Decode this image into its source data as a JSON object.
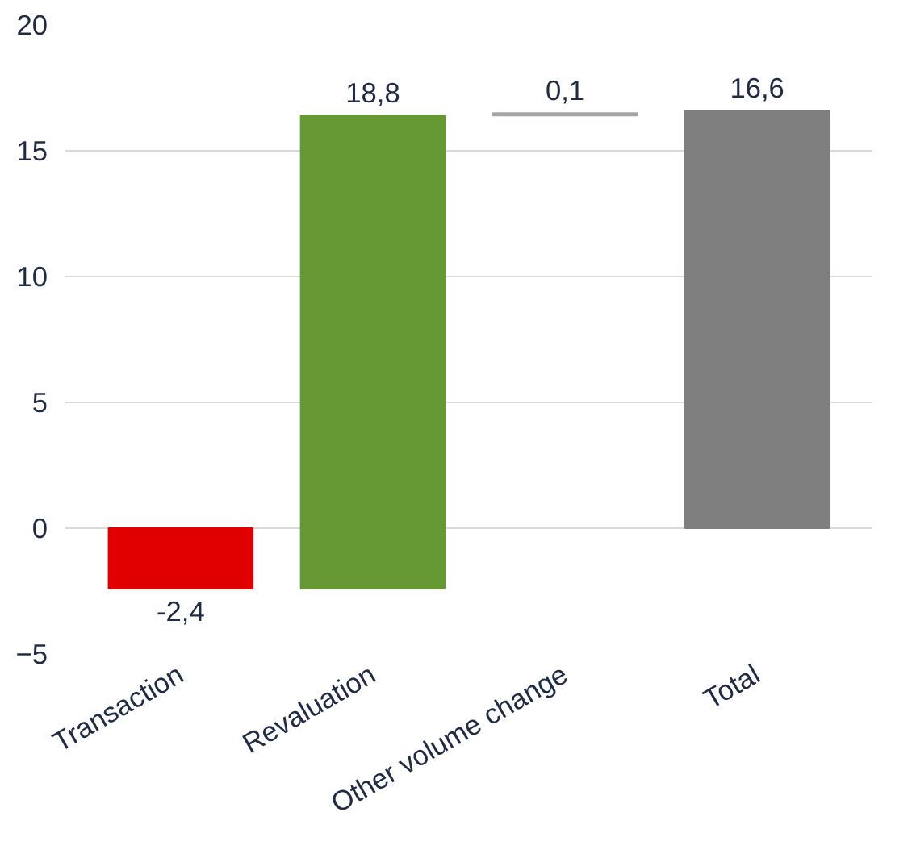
{
  "chart_data": {
    "type": "bar",
    "categories": [
      "Transaction",
      "Revaluation",
      "Other volume change",
      "Total"
    ],
    "values": [
      -2.4,
      18.8,
      0.1,
      16.6
    ],
    "base": [
      0,
      -2.4,
      16.4,
      0
    ],
    "colors": [
      "#e00000",
      "#669933",
      "#a5a5a5",
      "#7f7f7f"
    ],
    "value_labels": [
      "-2,4",
      "18,8",
      "0,1",
      "16,6"
    ],
    "ylim": [
      -5,
      20
    ],
    "yticks": [
      -5,
      0,
      5,
      10,
      15,
      20
    ],
    "grid": "y"
  }
}
